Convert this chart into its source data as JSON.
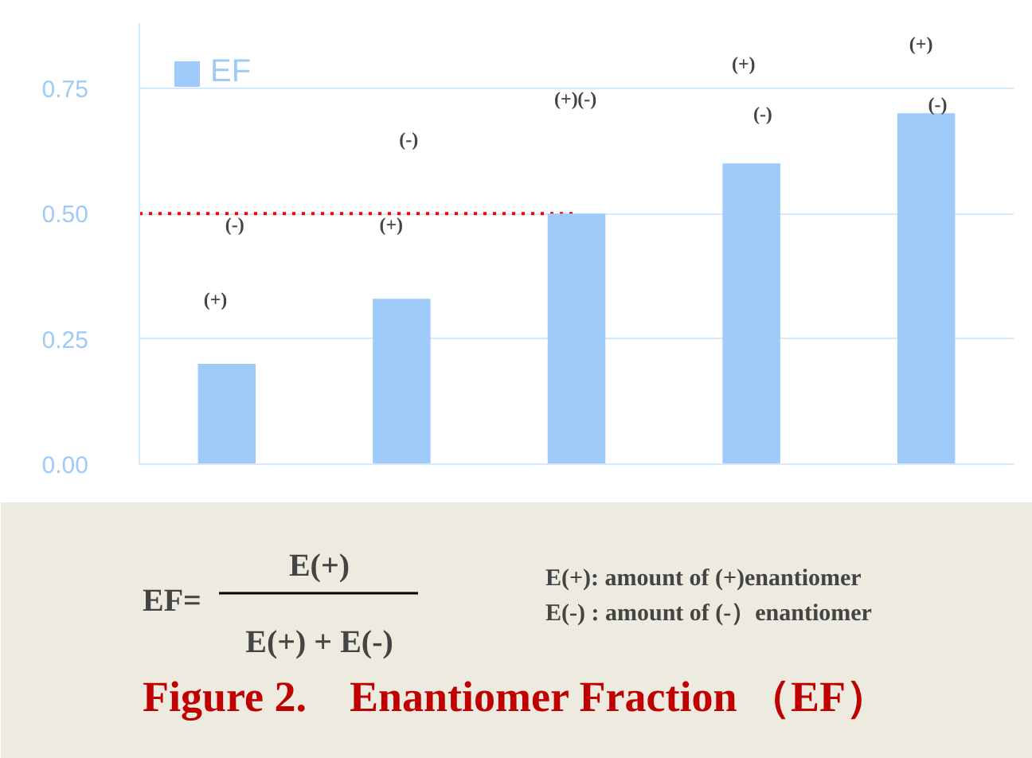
{
  "chart_data": {
    "type": "bar",
    "title": "Figure 2.　Enantiomer Fraction （EF）",
    "categories": [
      null,
      null,
      null,
      null,
      null
    ],
    "series": [
      {
        "name": "EF",
        "color": "#9ecbfa",
        "values": [
          0.2,
          0.33,
          0.5,
          0.6,
          0.7
        ]
      }
    ],
    "ylim": [
      0,
      0.88
    ],
    "yticks": [
      {
        "value": 0,
        "label": "0.00"
      },
      {
        "value": 0.25,
        "label": "0.25"
      },
      {
        "value": 0.5,
        "label": "0.50"
      },
      {
        "value": 0.75,
        "label": "0.75"
      }
    ],
    "grid": "y",
    "legend": "top left",
    "ref_lines": [
      {
        "axis": "y",
        "value": 0.5,
        "color": "#ff0000",
        "line_style": "dotted"
      }
    ],
    "annotations": [
      "(+)",
      "(-)",
      "(+)",
      "(-)",
      "(+)",
      "(-)",
      "(+)",
      "(-)",
      "(+)",
      "(-)",
      "EF=",
      "E(+)",
      "E(+) + E(-)",
      "E(+): amount of (+)enantiomer",
      "E(-) : amount of (-）enantiomer"
    ]
  }
}
